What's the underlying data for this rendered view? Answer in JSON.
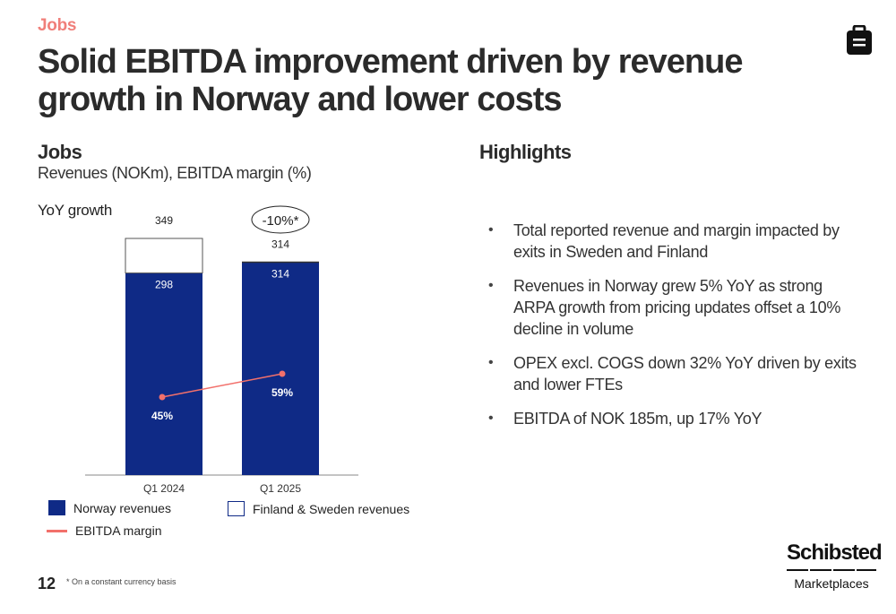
{
  "header": {
    "section_tag": "Jobs",
    "title": "Solid EBITDA improvement driven by revenue growth in Norway and lower costs",
    "icon": "briefcase-icon"
  },
  "chart_panel": {
    "heading": "Jobs",
    "subheading": "Revenues (NOKm), EBITDA margin (%)",
    "yoy_label": "YoY growth",
    "yoy_badge": "-10%*"
  },
  "chart_data": {
    "type": "bar",
    "stacked": true,
    "categories": [
      "Q1 2024",
      "Q1 2025"
    ],
    "series": [
      {
        "name": "Norway revenues",
        "values": [
          298,
          314
        ],
        "color": "#0f2a86"
      },
      {
        "name": "Finland & Sweden revenues",
        "values": [
          51,
          0
        ],
        "color": "#ffffff"
      }
    ],
    "totals": [
      349,
      314
    ],
    "line_series": {
      "name": "EBITDA margin",
      "values": [
        45,
        59
      ],
      "labels": [
        "45%",
        "59%"
      ],
      "color": "#f2706b"
    },
    "ylim": [
      0,
      349
    ],
    "grid": false,
    "legend_position": "bottom"
  },
  "highlights": {
    "heading": "Highlights",
    "items": [
      "Total reported revenue and margin impacted by exits in Sweden and Finland",
      "Revenues in Norway grew 5% YoY as strong ARPA growth from pricing updates offset a 10% decline in volume",
      "OPEX excl. COGS down 32% YoY driven by exits and lower FTEs",
      "EBITDA of NOK 185m, up 17% YoY"
    ]
  },
  "footer": {
    "page_number": "12",
    "footnote": "* On a constant currency basis",
    "logo_word": "Schibsted",
    "logo_sub": "Marketplaces"
  }
}
